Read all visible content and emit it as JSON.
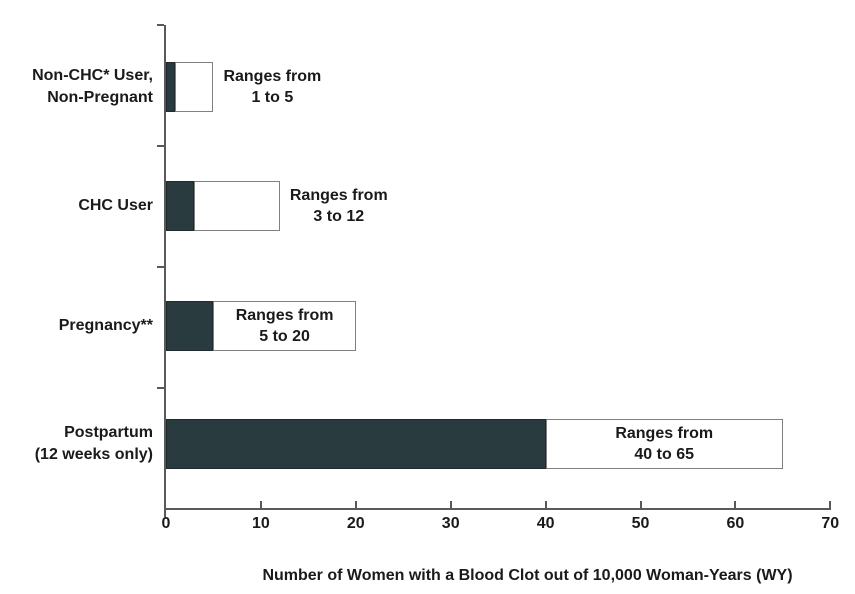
{
  "chart_data": {
    "type": "bar",
    "orientation": "horizontal",
    "title": "",
    "xlabel": "Number of Women with a Blood Clot out of 10,000 Woman-Years (WY)",
    "ylabel": "",
    "xlim": [
      0,
      70
    ],
    "x_ticks": [
      "0",
      "10",
      "20",
      "30",
      "40",
      "50",
      "60",
      "70"
    ],
    "grid": false,
    "legend": false,
    "rows": [
      {
        "category_lines": [
          "Non-CHC* User,",
          "Non-Pregnant"
        ],
        "low": 1,
        "high": 5,
        "label_lines": [
          "Ranges from",
          "1 to 5"
        ],
        "label_position": "outside"
      },
      {
        "category_lines": [
          "CHC User"
        ],
        "low": 3,
        "high": 12,
        "label_lines": [
          "Ranges from",
          "3 to 12"
        ],
        "label_position": "outside"
      },
      {
        "category_lines": [
          "Pregnancy**"
        ],
        "low": 5,
        "high": 20,
        "label_lines": [
          "Ranges from",
          "5 to 20"
        ],
        "label_position": "inside"
      },
      {
        "category_lines": [
          "Postpartum",
          "(12 weeks only)"
        ],
        "low": 40,
        "high": 65,
        "label_lines": [
          "Ranges from",
          "40 to 65"
        ],
        "label_position": "inside"
      }
    ],
    "colors": {
      "bar_fill_dark": "#2a3b40",
      "bar_fill_light": "#ffffff",
      "bar_border": "#808080",
      "axis_color": "#595959",
      "text_color": "#1a1a1a"
    }
  }
}
